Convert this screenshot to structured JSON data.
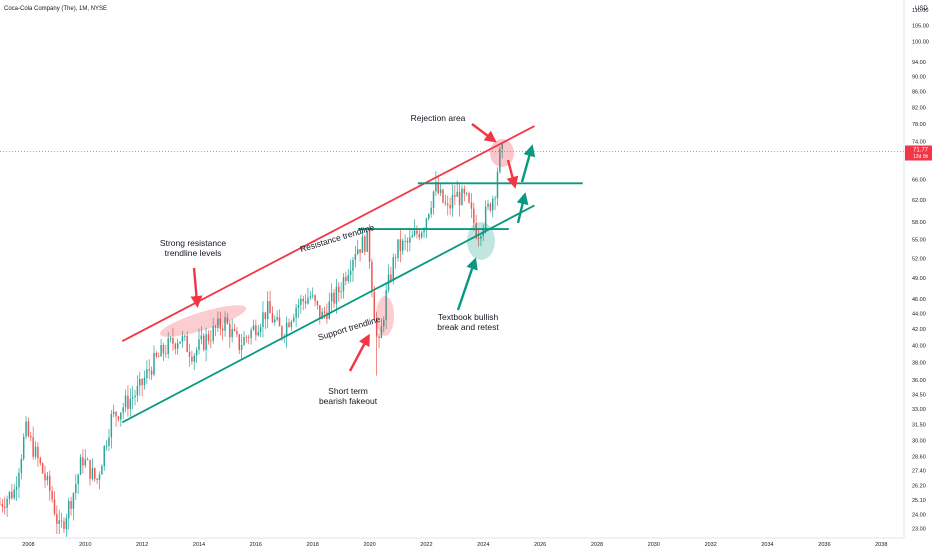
{
  "header": {
    "symbol": "Coca-Cola Company (The), 1M, NYSE"
  },
  "price_axis": {
    "currency": "USD",
    "ticks": [
      "110.00",
      "105.00",
      "100.00",
      "94.00",
      "90.00",
      "86.00",
      "82.00",
      "78.00",
      "74.00",
      "66.00",
      "62.00",
      "58.00",
      "55.00",
      "52.00",
      "49.00",
      "46.00",
      "44.00",
      "42.00",
      "40.00",
      "38.00",
      "36.00",
      "34.50",
      "33.00",
      "31.50",
      "30.00",
      "28.60",
      "27.40",
      "26.20",
      "25.10",
      "24.00",
      "23.00"
    ],
    "last_price_label": "71.77",
    "countdown_label": "12d 0h"
  },
  "time_axis": {
    "ticks": [
      "2008",
      "2010",
      "2012",
      "2014",
      "2016",
      "2018",
      "2020",
      "2022",
      "2024",
      "2026",
      "2028",
      "2030",
      "2032",
      "2034",
      "2036",
      "2038"
    ]
  },
  "annotations": {
    "rejection": "Rejection area",
    "strong_resistance_1": "Strong resistance",
    "strong_resistance_2": "trendline levels",
    "resistance_trendline": "Resistance trendline",
    "support_trendline": "Support trendline",
    "short_term_1": "Short term",
    "short_term_2": "bearish fakeout",
    "textbook_1": "Textbook bullish",
    "textbook_2": "break and retest"
  },
  "colors": {
    "up": "#26a69a",
    "down": "#ef5350",
    "resistance": "#f23645",
    "support": "#089981",
    "price_line": "#f23645"
  },
  "chart_data": {
    "type": "candlestick",
    "title": "Coca-Cola Company (The), 1M, NYSE",
    "y_scale": "log",
    "ylim": [
      22.5,
      112
    ],
    "xlim": [
      2007.0,
      2038.8
    ],
    "last_price": 71.77,
    "monthly_close_path": [
      [
        2007.0,
        24.8
      ],
      [
        2007.5,
        25.8
      ],
      [
        2007.9,
        31.0
      ],
      [
        2008.3,
        28.5
      ],
      [
        2008.8,
        25.5
      ],
      [
        2009.1,
        22.8
      ],
      [
        2009.6,
        25.8
      ],
      [
        2009.9,
        28.5
      ],
      [
        2010.4,
        26.5
      ],
      [
        2010.9,
        32.0
      ],
      [
        2011.4,
        33.5
      ],
      [
        2011.9,
        35.0
      ],
      [
        2012.3,
        37.5
      ],
      [
        2012.8,
        39.5
      ],
      [
        2013.3,
        41.0
      ],
      [
        2013.8,
        39.0
      ],
      [
        2014.3,
        41.0
      ],
      [
        2014.9,
        43.0
      ],
      [
        2015.4,
        40.0
      ],
      [
        2015.9,
        42.0
      ],
      [
        2016.4,
        44.5
      ],
      [
        2016.9,
        41.5
      ],
      [
        2017.4,
        45.0
      ],
      [
        2017.9,
        46.5
      ],
      [
        2018.3,
        43.5
      ],
      [
        2018.9,
        47.0
      ],
      [
        2019.5,
        53.5
      ],
      [
        2019.95,
        55.0
      ],
      [
        2020.15,
        45.0
      ],
      [
        2020.3,
        39.0
      ],
      [
        2020.6,
        47.0
      ],
      [
        2020.95,
        53.5
      ],
      [
        2021.4,
        54.5
      ],
      [
        2021.9,
        57.5
      ],
      [
        2022.3,
        64.5
      ],
      [
        2022.75,
        60.0
      ],
      [
        2023.0,
        63.0
      ],
      [
        2023.4,
        62.0
      ],
      [
        2023.8,
        56.0
      ],
      [
        2024.1,
        59.5
      ],
      [
        2024.4,
        63.5
      ],
      [
        2024.55,
        70.5
      ],
      [
        2024.7,
        71.77
      ]
    ],
    "trendlines": [
      {
        "role": "resistance",
        "from": [
          2011.3,
          40.5
        ],
        "to": [
          2025.8,
          77.5
        ]
      },
      {
        "role": "support",
        "from": [
          2011.3,
          31.7
        ],
        "to": [
          2025.8,
          61.0
        ]
      },
      {
        "role": "horizontal",
        "from": [
          2019.6,
          56.8
        ],
        "to": [
          2024.9,
          56.8
        ]
      },
      {
        "role": "horizontal",
        "from": [
          2021.7,
          65.2
        ],
        "to": [
          2027.5,
          65.2
        ]
      }
    ]
  }
}
